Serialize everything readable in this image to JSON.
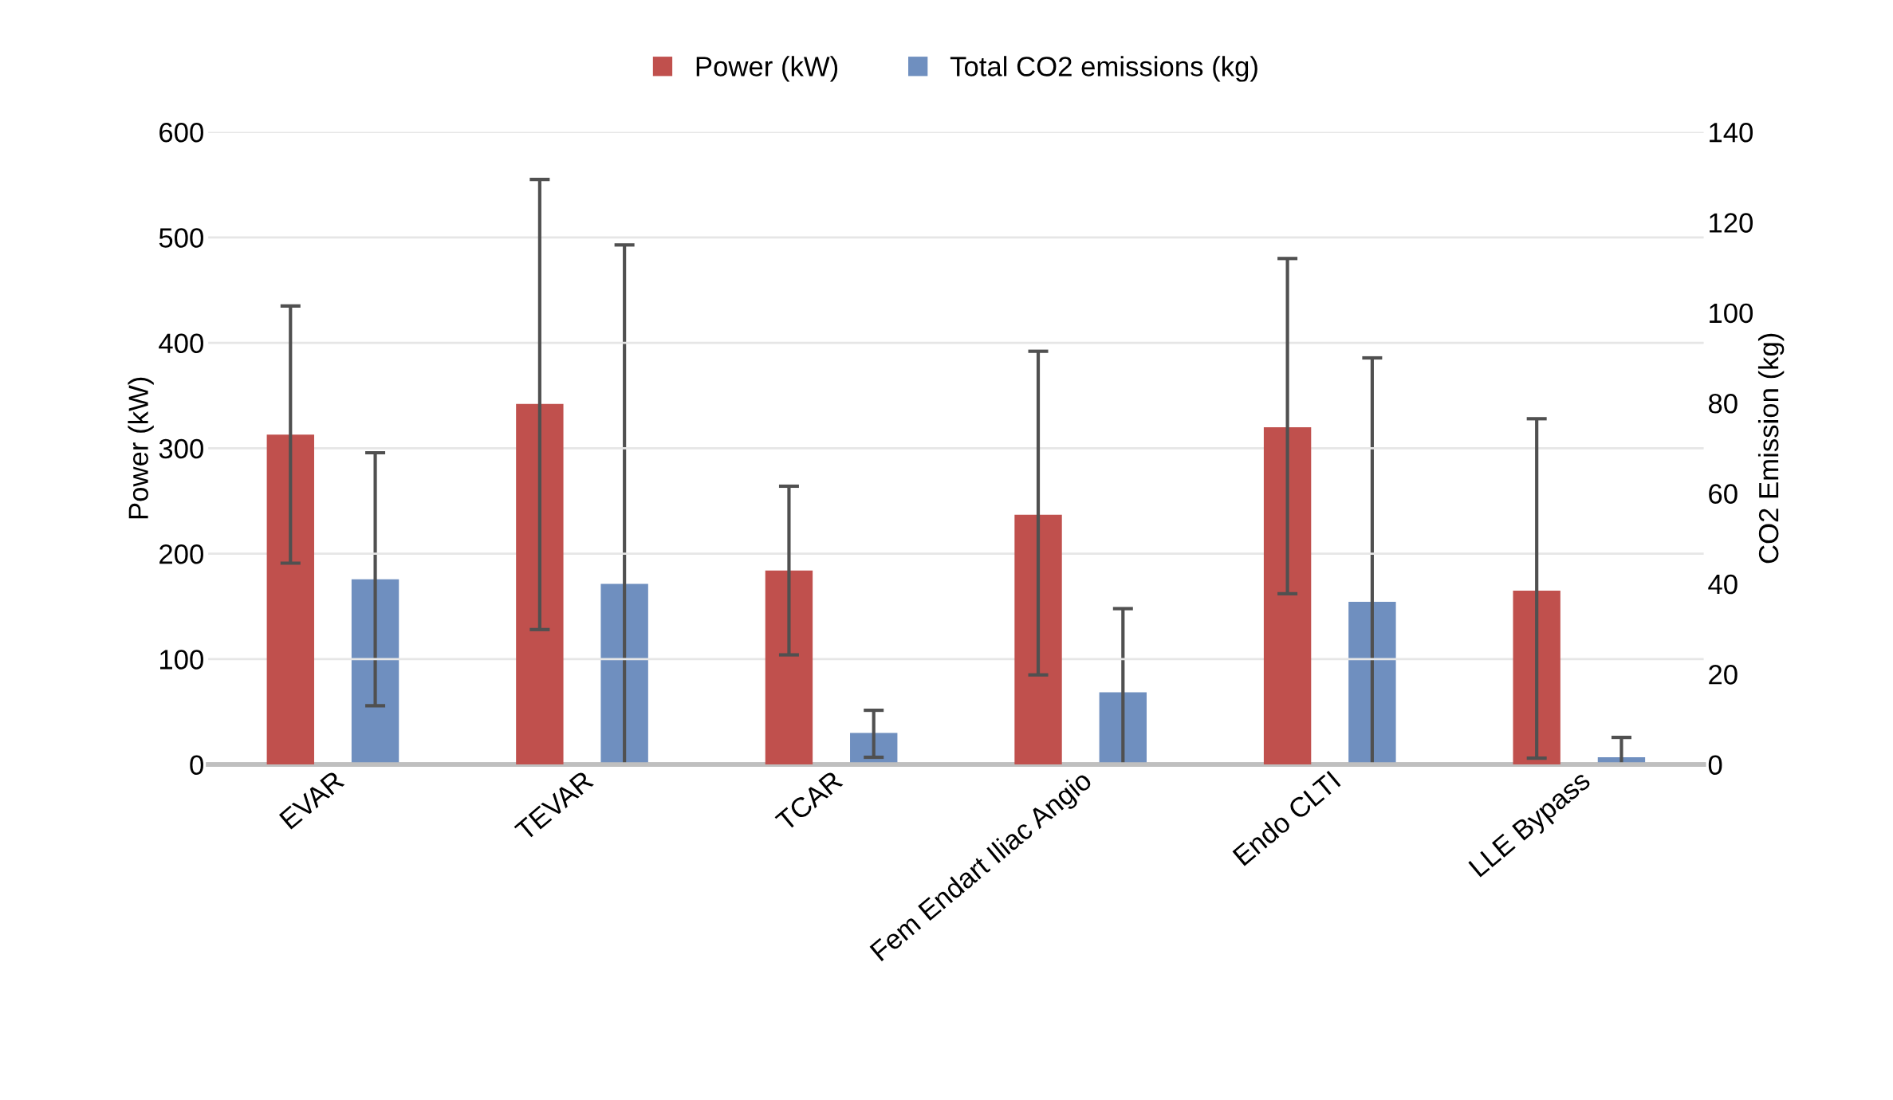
{
  "chart_data": {
    "type": "bar",
    "categories": [
      "EVAR",
      "TEVAR",
      "TCAR",
      "Fem Endart Iliac Angio",
      "Endo CLTI",
      "LLE Bypass"
    ],
    "series": [
      {
        "name": "Power (kW)",
        "color": "#c0504d",
        "values": [
          313,
          342,
          184,
          237,
          320,
          165
        ],
        "errors": [
          [
            191,
            435
          ],
          [
            128,
            555
          ],
          [
            104,
            264
          ],
          [
            85,
            392
          ],
          [
            162,
            480
          ],
          [
            6,
            328
          ]
        ]
      },
      {
        "name": "Total CO2 emissions (kg)",
        "color": "#6f8fbf",
        "axis": "y2",
        "values": [
          41,
          40,
          7,
          16,
          36,
          1.6
        ],
        "errors": [
          [
            13,
            69
          ],
          [
            0,
            115
          ],
          [
            1.6,
            12
          ],
          [
            0,
            34.5
          ],
          [
            0,
            90
          ],
          [
            0,
            6
          ]
        ]
      }
    ],
    "ylabel": "Power (kW)",
    "y2label": "CO2 Emission (kg)",
    "ylim": [
      0,
      600
    ],
    "yticks": [
      0,
      100,
      200,
      300,
      400,
      500,
      600
    ],
    "y2lim": [
      0,
      140
    ],
    "y2ticks": [
      0,
      20,
      40,
      60,
      80,
      100,
      120,
      140
    ],
    "grid": "y",
    "legend": "top"
  }
}
